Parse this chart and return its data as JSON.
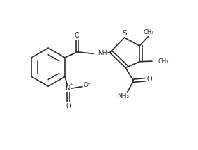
{
  "bg_color": "#ffffff",
  "line_color": "#2a2a2a",
  "line_width": 1.2,
  "font_size": 6.5,
  "figsize": [
    2.84,
    2.16
  ],
  "dpi": 100,
  "xlim": [
    0,
    8.5
  ],
  "ylim": [
    0,
    6.5
  ]
}
